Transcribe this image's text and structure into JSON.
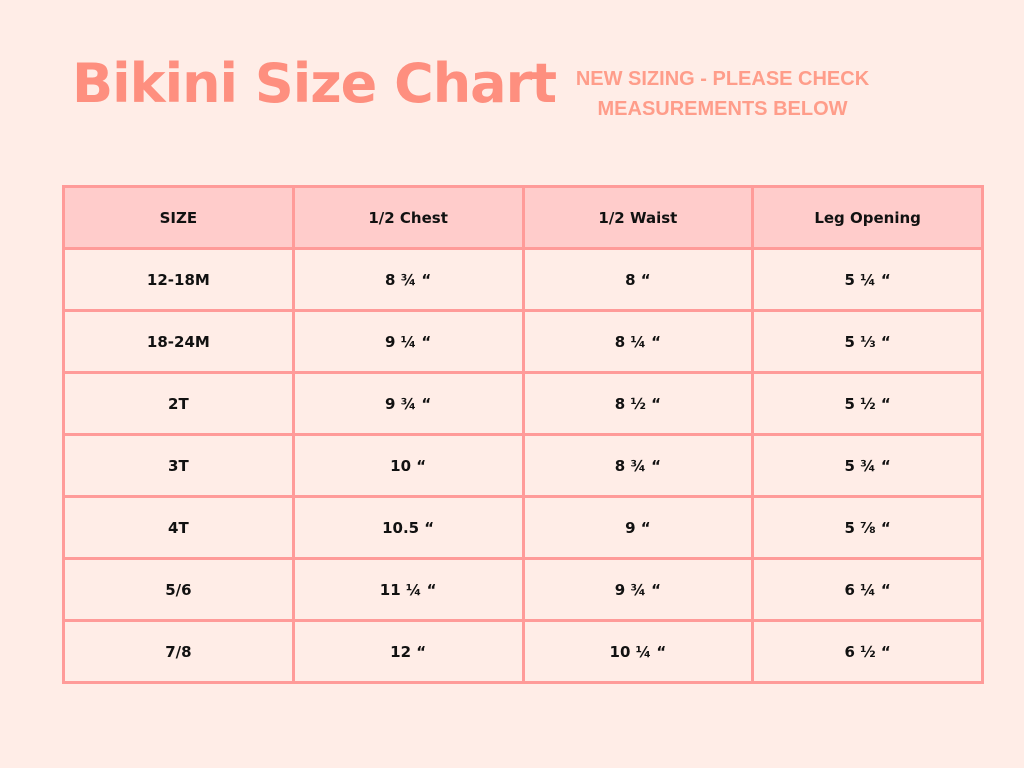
{
  "title": "Bikini Size Chart",
  "notice": [
    "NEW SIZING - PLEASE CHECK",
    "MEASUREMENTS BELOW"
  ],
  "table": {
    "headers": [
      "SIZE",
      "1/2 Chest",
      "1/2 Waist",
      "Leg Opening"
    ],
    "rows": [
      [
        "12-18M",
        "8 ¾ “",
        "8 “",
        "5 ¼ “"
      ],
      [
        "18-24M",
        "9 ¼ “",
        "8 ¼ “",
        "5 ⅓ “"
      ],
      [
        "2T",
        "9 ¾ “",
        "8 ½ “",
        "5 ½ “"
      ],
      [
        "3T",
        "10 “",
        "8 ¾ “",
        "5 ¾ “"
      ],
      [
        "4T",
        "10.5 “",
        "9 “",
        "5 ⅞ “"
      ],
      [
        "5/6",
        "11 ¼ “",
        "9 ¾ “",
        "6 ¼ “"
      ],
      [
        "7/8",
        "12 “",
        "10 ¼ “",
        "6 ½ “"
      ]
    ]
  },
  "colors": {
    "background": "#ffede7",
    "accent": "#fe8f7f",
    "header_fill": "#ffcccb",
    "border": "#ff9b99"
  }
}
